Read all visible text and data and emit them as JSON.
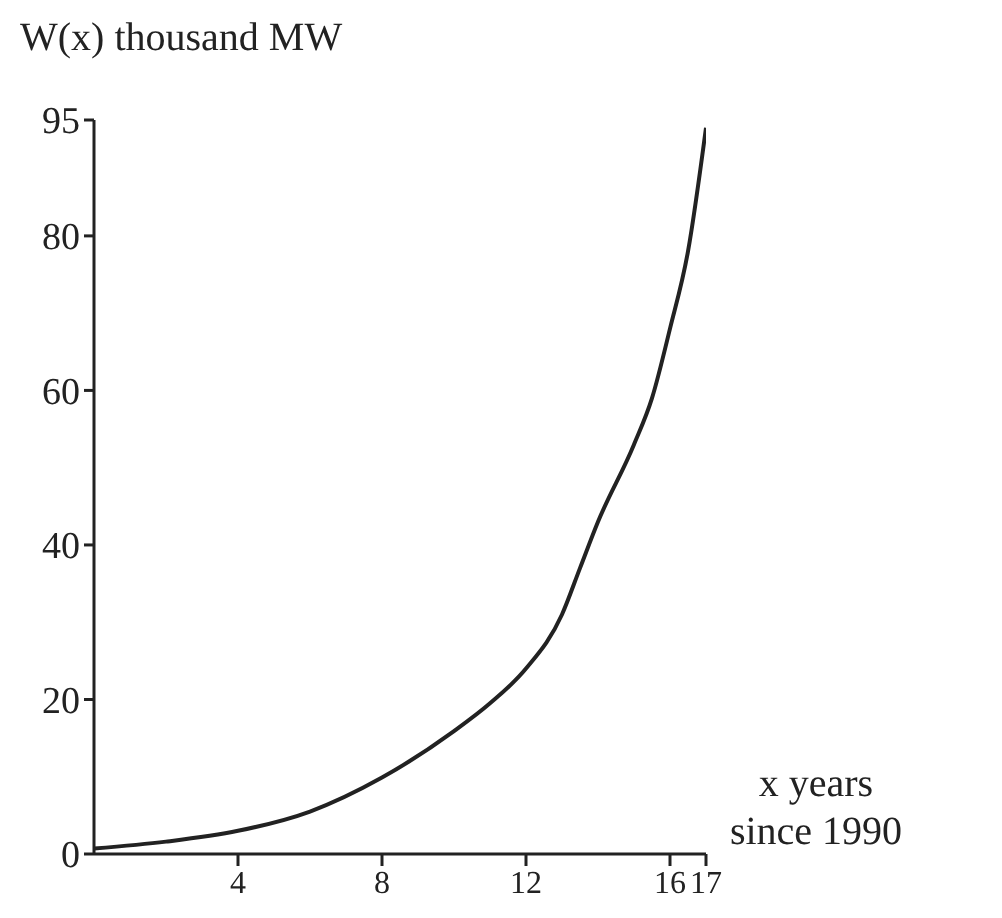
{
  "chart_data": {
    "type": "line",
    "xlabel": "x years since 1990",
    "ylabel": "W(x) thousand MW",
    "x": [
      0,
      2,
      4,
      6,
      8,
      10,
      11,
      12,
      13,
      13.5,
      14,
      15,
      15.5,
      16,
      16.5,
      17
    ],
    "series": [
      {
        "color": "#222222",
        "values": [
          0.7,
          1.6,
          3,
          5.5,
          9.9,
          15.9,
          19.5,
          24,
          31,
          37,
          43,
          53,
          59,
          68,
          78,
          94
        ]
      }
    ],
    "xlim": [
      0,
      17
    ],
    "xticks": [
      4,
      8,
      12,
      16,
      17
    ],
    "ylim": [
      0,
      95
    ],
    "yticks": [
      0,
      20,
      40,
      60,
      80,
      95
    ],
    "grid": false,
    "marker": "none",
    "line_style": "solid"
  }
}
